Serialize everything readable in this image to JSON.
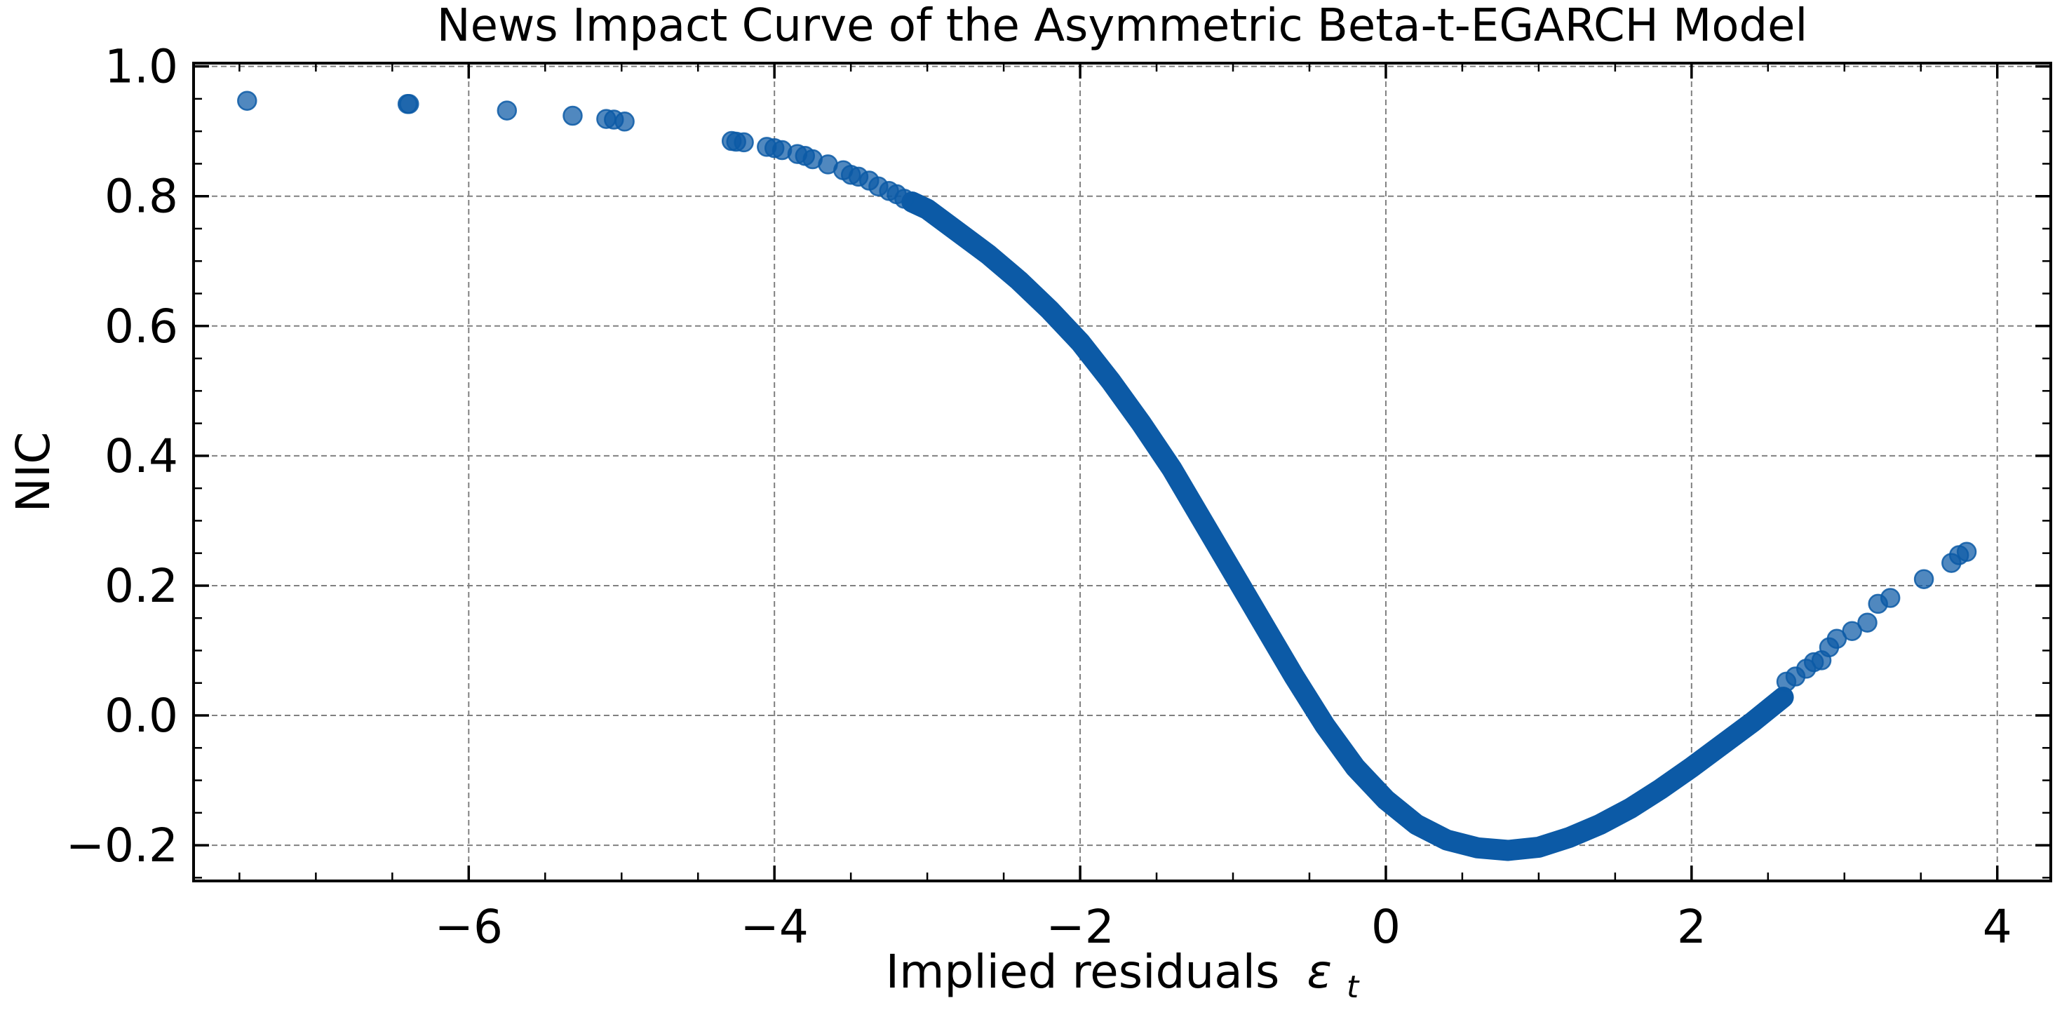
{
  "chart_data": {
    "type": "scatter",
    "title": "News Impact Curve of the Asymmetric Beta-t-EGARCH Model",
    "xlabel": "Implied residuals",
    "xlabel_symbol": "ε",
    "xlabel_subscript": "t",
    "ylabel": "NIC",
    "xlim": [
      -7.8,
      4.35
    ],
    "ylim": [
      -0.255,
      1.005
    ],
    "x_ticks": [
      -6,
      -4,
      -2,
      0,
      2,
      4
    ],
    "x_tick_labels": [
      "−6",
      "−4",
      "−2",
      "0",
      "2",
      "4"
    ],
    "y_ticks": [
      -0.2,
      0.0,
      0.2,
      0.4,
      0.6,
      0.8,
      1.0
    ],
    "y_tick_labels": [
      "−0.2",
      "0.0",
      "0.2",
      "0.4",
      "0.6",
      "0.8",
      "1.0"
    ],
    "grid": true,
    "color": "#0c5aa6",
    "sparse_points": {
      "x": [
        -7.45,
        -6.4,
        -6.39,
        -5.75,
        -5.32,
        -5.1,
        -5.05,
        -4.98,
        -4.28,
        -4.25,
        -4.2,
        -4.05,
        -4.0,
        -3.95,
        -3.85,
        -3.8,
        -3.75,
        -3.65,
        -3.55,
        -3.5,
        -3.45,
        -3.38,
        -3.32,
        -3.25,
        -3.2,
        -3.15,
        2.62,
        2.68,
        2.75,
        2.8,
        2.85,
        2.9,
        2.95,
        3.05,
        3.15,
        3.22,
        3.3,
        3.52,
        3.7,
        3.75,
        3.8
      ],
      "y": [
        0.947,
        0.942,
        0.942,
        0.932,
        0.924,
        0.919,
        0.918,
        0.915,
        0.885,
        0.884,
        0.883,
        0.876,
        0.874,
        0.871,
        0.865,
        0.862,
        0.857,
        0.849,
        0.84,
        0.833,
        0.83,
        0.824,
        0.815,
        0.808,
        0.803,
        0.796,
        0.052,
        0.06,
        0.072,
        0.082,
        0.085,
        0.105,
        0.118,
        0.13,
        0.143,
        0.172,
        0.181,
        0.21,
        0.235,
        0.247,
        0.252
      ]
    },
    "dense_curve": {
      "x": [
        -3.1,
        -3.0,
        -2.8,
        -2.6,
        -2.4,
        -2.2,
        -2.0,
        -1.8,
        -1.6,
        -1.4,
        -1.2,
        -1.0,
        -0.8,
        -0.6,
        -0.4,
        -0.2,
        0.0,
        0.2,
        0.4,
        0.6,
        0.8,
        1.0,
        1.2,
        1.4,
        1.6,
        1.8,
        2.0,
        2.2,
        2.4,
        2.6
      ],
      "y": [
        0.791,
        0.78,
        0.745,
        0.71,
        0.67,
        0.625,
        0.575,
        0.515,
        0.45,
        0.38,
        0.3,
        0.22,
        0.14,
        0.06,
        -0.015,
        -0.08,
        -0.13,
        -0.168,
        -0.192,
        -0.204,
        -0.208,
        -0.203,
        -0.188,
        -0.168,
        -0.143,
        -0.113,
        -0.08,
        -0.045,
        -0.01,
        0.028
      ]
    }
  }
}
